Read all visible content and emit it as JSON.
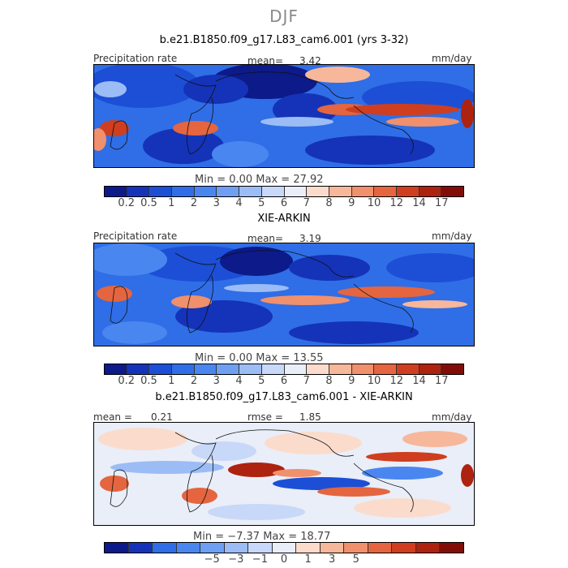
{
  "season": "DJF",
  "units": "mm/day",
  "panel1": {
    "title": "b.e21.B1850.f09_g17.L83_cam6.001 (yrs 3-32)",
    "variable": "Precipitation rate",
    "mean_label": "mean=",
    "mean": "3.42",
    "minmax_text": "Min =    0.00  Max =  27.92"
  },
  "panel2": {
    "title": "XIE-ARKIN",
    "variable": "Precipitation rate",
    "mean_label": "mean=",
    "mean": "3.19",
    "minmax_text": "Min =    0.00  Max =  13.55"
  },
  "panel3": {
    "title": "b.e21.B1850.f09_g17.L83_cam6.001 - XIE-ARKIN",
    "mean_label": "mean =",
    "mean": "0.21",
    "rmse_label": "rmse =",
    "rmse": "1.85",
    "minmax_text": "Min =  −7.37  Max =  18.77"
  },
  "precip_colorbar": {
    "tick_labels": [
      "0.2",
      "0.5",
      "1",
      "2",
      "3",
      "4",
      "5",
      "6",
      "7",
      "8",
      "9",
      "10",
      "12",
      "14",
      "17"
    ],
    "colors": [
      "#0c1a8a",
      "#1533b8",
      "#1c4fd6",
      "#2f6ee6",
      "#4a86f0",
      "#6f9ff2",
      "#9cbcf5",
      "#c8d8f8",
      "#e9eef8",
      "#fbdccc",
      "#f7b79a",
      "#f0906c",
      "#e4653f",
      "#cf3e1f",
      "#ae2210",
      "#820d08"
    ]
  },
  "diff_colorbar": {
    "tick_labels": [
      "−5",
      "−3",
      "−1",
      "0",
      "1",
      "3",
      "5"
    ],
    "colors": [
      "#0c1a8a",
      "#1533b8",
      "#2f6ee6",
      "#4a86f0",
      "#6f9ff2",
      "#9cbcf5",
      "#c8d8f8",
      "#e9eef8",
      "#fbdccc",
      "#f7b79a",
      "#f0906c",
      "#e4653f",
      "#cf3e1f",
      "#ae2210",
      "#820d08"
    ]
  }
}
